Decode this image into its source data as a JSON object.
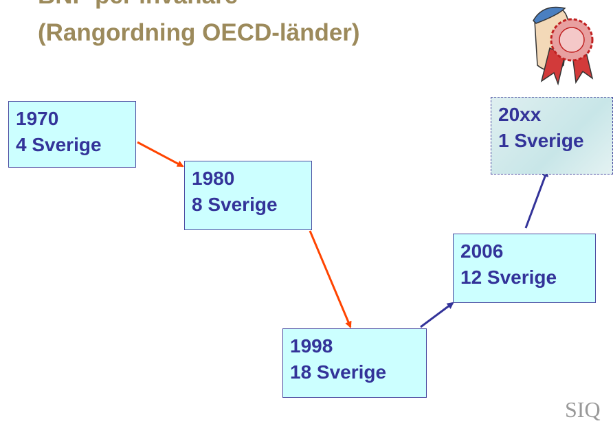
{
  "title": {
    "line1": "BNP per invånare",
    "line2": "(Rangordning OECD-länder)"
  },
  "nodes": [
    {
      "year": "1970",
      "rank": "4 Sverige"
    },
    {
      "year": "1980",
      "rank": "8 Sverige"
    },
    {
      "year": "1998",
      "rank": "18 Sverige"
    },
    {
      "year": "2006",
      "rank": "12 Sverige"
    },
    {
      "year": "20xx",
      "rank": "1 Sverige"
    }
  ],
  "logo": "SIQ"
}
